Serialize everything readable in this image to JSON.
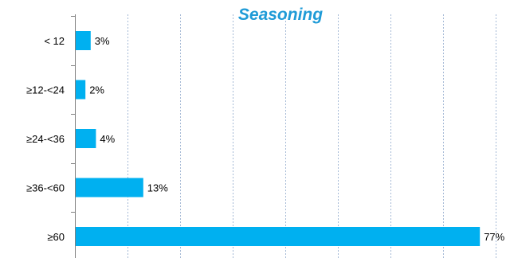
{
  "chart_data": {
    "type": "bar",
    "orientation": "horizontal",
    "title": "Seasoning",
    "xlabel": "",
    "ylabel": "",
    "categories": [
      "< 12",
      "≥12-<24",
      "≥24-<36",
      "≥36-<60",
      "≥60"
    ],
    "values": [
      3,
      2,
      4,
      13,
      77
    ],
    "value_labels": [
      "3%",
      "2%",
      "4%",
      "13%",
      "77%"
    ],
    "xlim": [
      0,
      80
    ],
    "gridlines": "vertical-dashed",
    "legend": "none",
    "colors": {
      "bar": "#00B0F0",
      "title": "#1F9BD7",
      "grid": "#A6BAD6",
      "axis": "#808080",
      "text": "#000000"
    }
  }
}
